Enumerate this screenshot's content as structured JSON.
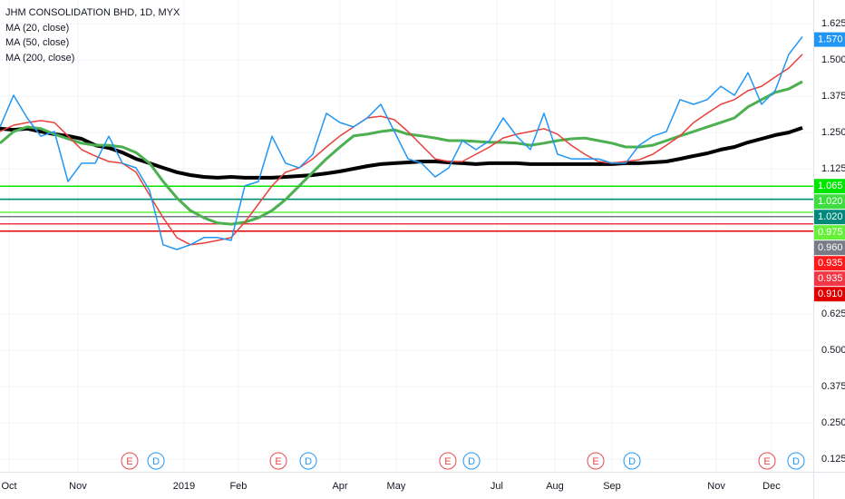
{
  "chart_data": {
    "type": "line",
    "title": "JHM CONSOLIDATION BHD, 1D, MYX",
    "legend": [
      "MA (20, close)",
      "MA (50, close)",
      "MA (200, close)"
    ],
    "series": [
      {
        "color": "#2196f3",
        "width": 1.5,
        "values": [
          1.269,
          1.378,
          1.3,
          1.237,
          1.253,
          1.081,
          1.144,
          1.144,
          1.237,
          1.144,
          1.128,
          1.05,
          0.863,
          0.847,
          0.863,
          0.888,
          0.888,
          0.878,
          1.066,
          1.081,
          1.237,
          1.144,
          1.128,
          1.175,
          1.316,
          1.284,
          1.269,
          1.3,
          1.347,
          1.253,
          1.159,
          1.144,
          1.097,
          1.128,
          1.222,
          1.191,
          1.222,
          1.3,
          1.237,
          1.191,
          1.316,
          1.175,
          1.159,
          1.159,
          1.159,
          1.144,
          1.144,
          1.206,
          1.237,
          1.253,
          1.363,
          1.347,
          1.363,
          1.409,
          1.378,
          1.456,
          1.347,
          1.394,
          1.519,
          1.58
        ]
      },
      {
        "name": "MA (20, close)",
        "color": "#e8413c",
        "width": 1.5,
        "values": [
          1.253,
          1.275,
          1.284,
          1.291,
          1.284,
          1.238,
          1.191,
          1.169,
          1.15,
          1.144,
          1.113,
          1.034,
          0.956,
          0.888,
          0.863,
          0.869,
          0.878,
          0.888,
          0.941,
          1.003,
          1.066,
          1.113,
          1.128,
          1.159,
          1.2,
          1.238,
          1.269,
          1.3,
          1.306,
          1.294,
          1.253,
          1.206,
          1.159,
          1.15,
          1.15,
          1.175,
          1.2,
          1.231,
          1.244,
          1.253,
          1.263,
          1.244,
          1.206,
          1.175,
          1.15,
          1.144,
          1.15,
          1.156,
          1.175,
          1.206,
          1.238,
          1.284,
          1.316,
          1.347,
          1.363,
          1.394,
          1.409,
          1.441,
          1.472,
          1.519
        ]
      },
      {
        "name": "MA (50, close)",
        "color": "#4caf50",
        "width": 3,
        "values": [
          1.213,
          1.253,
          1.269,
          1.263,
          1.244,
          1.228,
          1.213,
          1.206,
          1.206,
          1.2,
          1.181,
          1.144,
          1.081,
          1.025,
          0.981,
          0.956,
          0.938,
          0.934,
          0.941,
          0.956,
          0.981,
          1.019,
          1.066,
          1.113,
          1.159,
          1.2,
          1.238,
          1.244,
          1.253,
          1.259,
          1.244,
          1.238,
          1.231,
          1.222,
          1.222,
          1.219,
          1.216,
          1.216,
          1.213,
          1.206,
          1.213,
          1.222,
          1.228,
          1.231,
          1.222,
          1.213,
          1.2,
          1.2,
          1.206,
          1.222,
          1.238,
          1.253,
          1.269,
          1.284,
          1.3,
          1.338,
          1.363,
          1.388,
          1.4,
          1.425
        ]
      },
      {
        "name": "MA (200, close)",
        "color": "#000000",
        "width": 4,
        "values": [
          1.263,
          1.259,
          1.263,
          1.253,
          1.244,
          1.238,
          1.228,
          1.206,
          1.197,
          1.181,
          1.159,
          1.144,
          1.128,
          1.113,
          1.103,
          1.097,
          1.094,
          1.097,
          1.094,
          1.094,
          1.094,
          1.097,
          1.1,
          1.103,
          1.109,
          1.116,
          1.125,
          1.134,
          1.141,
          1.144,
          1.147,
          1.15,
          1.15,
          1.147,
          1.144,
          1.141,
          1.144,
          1.144,
          1.144,
          1.141,
          1.141,
          1.141,
          1.141,
          1.141,
          1.141,
          1.141,
          1.144,
          1.144,
          1.147,
          1.15,
          1.159,
          1.169,
          1.178,
          1.191,
          1.2,
          1.216,
          1.228,
          1.241,
          1.25,
          1.266
        ]
      }
    ],
    "xlim": [
      0,
      59.8
    ],
    "xticks": [
      {
        "value": 0.67,
        "label": "Oct"
      },
      {
        "value": 5.73,
        "label": "Nov"
      },
      {
        "value": 13.53,
        "label": "2019"
      },
      {
        "value": 17.53,
        "label": "Feb"
      },
      {
        "value": 25,
        "label": "Apr"
      },
      {
        "value": 29.13,
        "label": "May"
      },
      {
        "value": 36.53,
        "label": "Jul"
      },
      {
        "value": 40.8,
        "label": "Aug"
      },
      {
        "value": 45,
        "label": "Sep"
      },
      {
        "value": 52.67,
        "label": "Nov"
      },
      {
        "value": 56.73,
        "label": "Dec"
      }
    ],
    "ylim": [
      0.08125,
      1.70625
    ],
    "yticks": [
      1.625,
      {
        "value": 1.5,
        "label": "1.500"
      },
      1.375,
      {
        "value": 1.25,
        "label": "1.250"
      },
      1.125,
      0.625,
      {
        "value": 0.5,
        "label": "0.500"
      },
      0.375,
      {
        "value": 0.25,
        "label": "0.250"
      },
      0.125
    ],
    "grid": true,
    "last_price": {
      "value": 1.57,
      "label": "1.570",
      "color": "#2196f3"
    },
    "levels": [
      {
        "value": 1.065,
        "label": "1.065",
        "color": "#00e600"
      },
      {
        "value": 1.02,
        "label": "1.020",
        "color": "#3edc3e"
      },
      {
        "value": 1.02,
        "label": "1.020",
        "color": "#00897b"
      },
      {
        "value": 0.975,
        "label": "0.975",
        "color": "#66f03a"
      },
      {
        "value": 0.96,
        "label": "0.960",
        "color": "#787b86"
      },
      {
        "value": 0.935,
        "label": "0.935",
        "color": "#ff1a1a"
      },
      {
        "value": 0.935,
        "label": "0.935",
        "color": "#f23645"
      },
      {
        "value": 0.91,
        "label": "0.910",
        "color": "#e00000"
      }
    ],
    "events": [
      {
        "x": 9.53,
        "label": "E",
        "color": "#e5494d"
      },
      {
        "x": 11.47,
        "label": "D",
        "color": "#2196f3"
      },
      {
        "x": 20.47,
        "label": "E",
        "color": "#e5494d"
      },
      {
        "x": 22.67,
        "label": "D",
        "color": "#2196f3"
      },
      {
        "x": 32.93,
        "label": "E",
        "color": "#e5494d"
      },
      {
        "x": 34.67,
        "label": "D",
        "color": "#2196f3"
      },
      {
        "x": 43.8,
        "label": "E",
        "color": "#e5494d"
      },
      {
        "x": 46.47,
        "label": "D",
        "color": "#2196f3"
      },
      {
        "x": 56.4,
        "label": "E",
        "color": "#e5494d"
      },
      {
        "x": 58.53,
        "label": "D",
        "color": "#2196f3"
      }
    ]
  }
}
